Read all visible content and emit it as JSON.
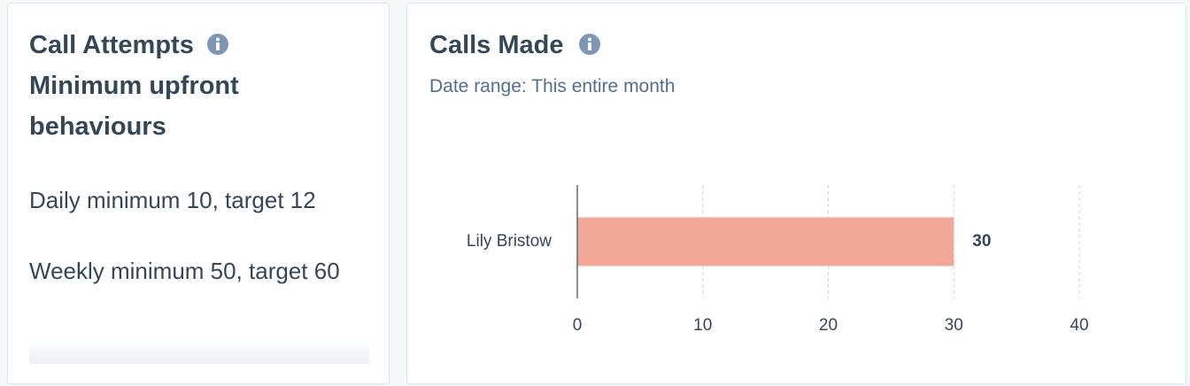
{
  "left_card": {
    "title": "Call Attempts",
    "subtitle": "Minimum upfront behaviours",
    "lines": [
      "Daily minimum 10, target 12",
      "Weekly minimum 50, target 60"
    ]
  },
  "chart_data": {
    "type": "bar",
    "orientation": "horizontal",
    "title": "Calls Made",
    "subtitle": "Date range: This entire month",
    "categories": [
      "Lily Bristow"
    ],
    "values": [
      30
    ],
    "color": "#f2a896",
    "xlim": [
      0,
      40
    ],
    "xticks": [
      0,
      10,
      20,
      30,
      40
    ],
    "grid": true
  }
}
